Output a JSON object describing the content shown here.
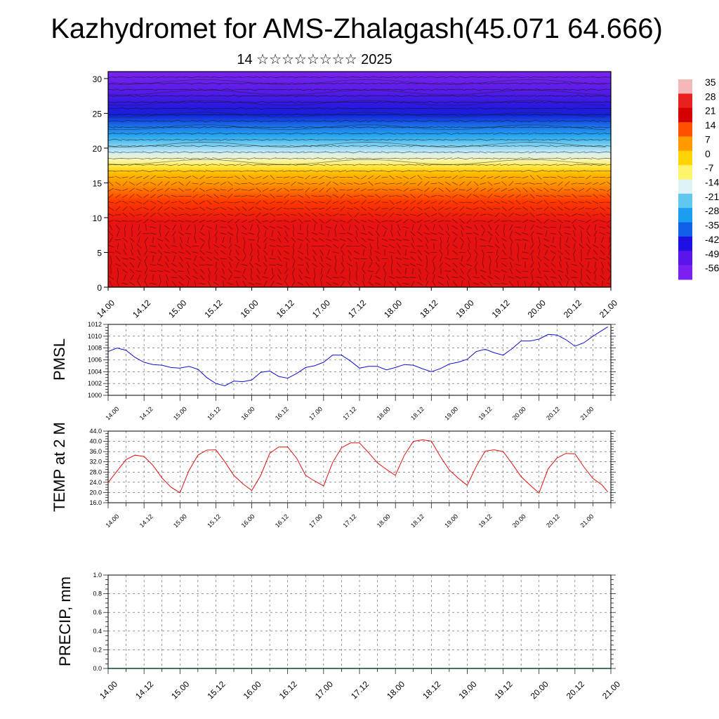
{
  "title": "Kazhydromet for AMS-Zhalagash(45.071 64.666)",
  "subtitle": "14 ☆☆☆☆☆☆☆☆ 2025",
  "time_ticks": [
    "14.00",
    "14.12",
    "15.00",
    "15.12",
    "16.00",
    "16.12",
    "17.00",
    "17.12",
    "18.00",
    "18.12",
    "19.00",
    "19.12",
    "20.00",
    "20.12",
    "21.00"
  ],
  "chart_data": [
    {
      "type": "heatmap",
      "name": "vertical-cross-section",
      "ylabel": "",
      "y_ticks": [
        0,
        5,
        10,
        15,
        20,
        25,
        30
      ],
      "ylim": [
        0,
        31
      ],
      "xlim": [
        0,
        168
      ],
      "colorbar_labels": [
        "35",
        "28",
        "21",
        "14",
        "7",
        "0",
        "-7",
        "-14",
        "-21",
        "-28",
        "-35",
        "-42",
        "-49",
        "-56"
      ],
      "colorbar_colors": [
        "#f4b8b8",
        "#e82020",
        "#d40000",
        "#ff5000",
        "#ff9a00",
        "#ffd200",
        "#fff36a",
        "#dff2f6",
        "#60c8f0",
        "#1a9ef0",
        "#1060e8",
        "#1e10e0",
        "#5a16e8",
        "#7a20f0"
      ],
      "vectors": true
    },
    {
      "type": "line",
      "name": "pmsl",
      "ylabel": "PMSL",
      "ylim": [
        1000,
        1012
      ],
      "y_ticks": [
        "1000",
        "1002",
        "1004",
        "1006",
        "1008",
        "1010",
        "1012"
      ],
      "xlim": [
        0,
        168
      ],
      "x": [
        0,
        3,
        6,
        9,
        12,
        15,
        18,
        21,
        24,
        27,
        30,
        33,
        36,
        39,
        42,
        45,
        48,
        51,
        54,
        57,
        60,
        63,
        66,
        69,
        72,
        75,
        78,
        81,
        84,
        87,
        90,
        93,
        96,
        99,
        102,
        105,
        108,
        111,
        114,
        117,
        120,
        123,
        126,
        129,
        132,
        135,
        138,
        141,
        144,
        147,
        150,
        153,
        156,
        159,
        162
      ],
      "values": [
        1007.4,
        1008.0,
        1007.6,
        1006.4,
        1005.6,
        1005.2,
        1005.1,
        1004.7,
        1004.6,
        1004.9,
        1004.4,
        1003.0,
        1002.0,
        1001.6,
        1002.4,
        1002.3,
        1002.6,
        1003.9,
        1004.1,
        1003.2,
        1002.9,
        1003.7,
        1004.7,
        1005.0,
        1005.6,
        1006.8,
        1006.8,
        1005.8,
        1004.6,
        1004.9,
        1004.9,
        1004.3,
        1004.7,
        1005.2,
        1005.1,
        1004.5,
        1004.0,
        1004.5,
        1005.3,
        1005.6,
        1006.1,
        1007.4,
        1007.8,
        1007.2,
        1006.8,
        1007.9,
        1009.2,
        1009.2,
        1009.5,
        1010.3,
        1010.2,
        1009.4,
        1008.3,
        1008.9,
        1010.0
      ]
    },
    {
      "type": "line",
      "name": "temp-2m",
      "ylabel": "TEMP at 2 M",
      "ylim": [
        16,
        44
      ],
      "y_ticks": [
        "16.0",
        "20.0",
        "24.0",
        "28.0",
        "32.0",
        "36.0",
        "40.0",
        "44.0"
      ],
      "xlim": [
        0,
        168
      ],
      "x": [
        0,
        3,
        6,
        9,
        12,
        15,
        18,
        21,
        24,
        27,
        30,
        33,
        36,
        39,
        42,
        45,
        48,
        51,
        54,
        57,
        60,
        63,
        66,
        69,
        72,
        75,
        78,
        81,
        84,
        87,
        90,
        93,
        96,
        99,
        102,
        105,
        108,
        111,
        114,
        117,
        120,
        123,
        126,
        129,
        132,
        135,
        138,
        141,
        144,
        147,
        150,
        153,
        156,
        159,
        162
      ],
      "values": [
        23.9,
        28.4,
        32.9,
        34.6,
        34.1,
        30.6,
        25.7,
        22.1,
        19.9,
        28.6,
        34.6,
        36.6,
        36.7,
        32.0,
        26.7,
        23.4,
        20.8,
        26.7,
        35.3,
        37.8,
        37.8,
        33.4,
        26.7,
        24.5,
        22.6,
        31.7,
        37.5,
        39.4,
        39.4,
        35.6,
        31.6,
        29.0,
        26.7,
        34.6,
        40.0,
        40.6,
        40.1,
        34.1,
        28.8,
        25.6,
        22.8,
        30.2,
        36.2,
        36.7,
        36.0,
        31.2,
        26.2,
        22.9,
        19.8,
        29.2,
        33.5,
        35.3,
        35.1,
        30.0,
        25.5
      ],
      "series_end": [
        23.0,
        20.2
      ]
    },
    {
      "type": "bar",
      "name": "precip",
      "ylabel": "PRECIP, mm",
      "ylim": [
        0,
        1
      ],
      "y_ticks": [
        "0.0",
        "0.2",
        "0.4",
        "0.6",
        "0.8",
        "1.0"
      ],
      "xlim": [
        0,
        168
      ],
      "values": []
    }
  ]
}
